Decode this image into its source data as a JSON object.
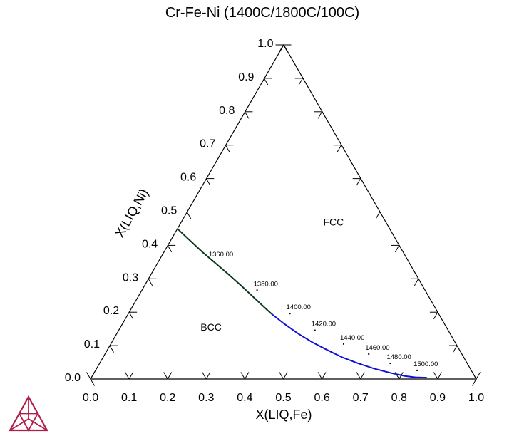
{
  "chart_data": {
    "type": "ternary",
    "title": "Cr-Fe-Ni (1400C/1800C/100C)",
    "xlabel": "X(LIQ,Fe)",
    "ylabel": "X(LIQ,Ni)",
    "xlim": [
      0.0,
      1.0
    ],
    "ylim": [
      0.0,
      1.0
    ],
    "x_ticks": [
      "0.0",
      "0.1",
      "0.2",
      "0.3",
      "0.4",
      "0.5",
      "0.6",
      "0.7",
      "0.8",
      "0.9",
      "1.0"
    ],
    "y_ticks": [
      "0.0",
      "0.1",
      "0.2",
      "0.3",
      "0.4",
      "0.5",
      "0.6",
      "0.7",
      "0.8",
      "0.9",
      "1.0"
    ],
    "regions": [
      {
        "name": "FCC",
        "x": 0.4,
        "y": 0.46
      },
      {
        "name": "BCC",
        "x": 0.24,
        "y": 0.145
      }
    ],
    "series": [
      {
        "color": "#0a3a1a",
        "points": [
          [
            0.0,
            0.45
          ],
          [
            0.05,
            0.415
          ],
          [
            0.1,
            0.38
          ],
          [
            0.15,
            0.347
          ],
          [
            0.2,
            0.314
          ],
          [
            0.25,
            0.28
          ],
          [
            0.3,
            0.245
          ],
          [
            0.35,
            0.21
          ],
          [
            0.375,
            0.193
          ]
        ]
      },
      {
        "color": "#1010d0",
        "points": [
          [
            0.375,
            0.193
          ],
          [
            0.42,
            0.165
          ],
          [
            0.47,
            0.136
          ],
          [
            0.52,
            0.11
          ],
          [
            0.57,
            0.087
          ],
          [
            0.62,
            0.065
          ],
          [
            0.67,
            0.047
          ],
          [
            0.72,
            0.031
          ],
          [
            0.77,
            0.018
          ],
          [
            0.81,
            0.009
          ],
          [
            0.84,
            0.005
          ],
          [
            0.87,
            0.004
          ]
        ]
      }
    ],
    "isotherm_labels": [
      {
        "text": "1360.00",
        "x": 0.12,
        "y": 0.373
      },
      {
        "text": "1380.00",
        "x": 0.28,
        "y": 0.285
      },
      {
        "text": "1400.00",
        "x": 0.4,
        "y": 0.215
      },
      {
        "text": "1420.00",
        "x": 0.49,
        "y": 0.165
      },
      {
        "text": "1440.00",
        "x": 0.585,
        "y": 0.124
      },
      {
        "text": "1460.00",
        "x": 0.665,
        "y": 0.094
      },
      {
        "text": "1480.00",
        "x": 0.735,
        "y": 0.066
      },
      {
        "text": "1500.00",
        "x": 0.815,
        "y": 0.045
      }
    ],
    "grid": false,
    "legend": "none"
  },
  "logo": {
    "name": "thermo-calc-logo-icon",
    "color": "#b0204a"
  }
}
